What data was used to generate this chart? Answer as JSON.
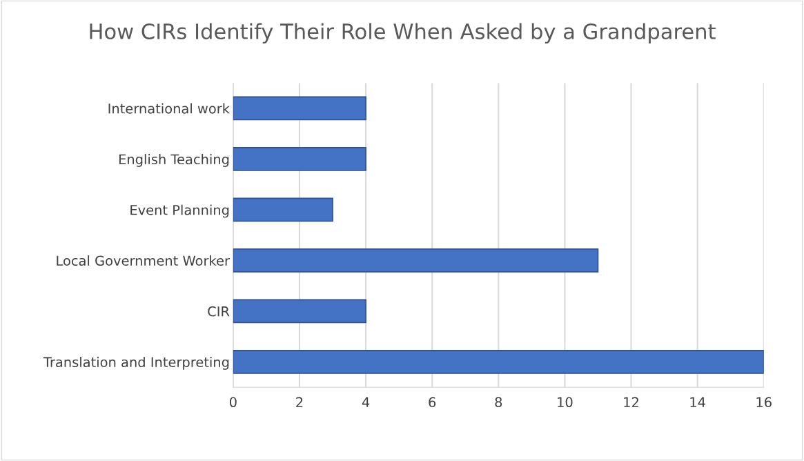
{
  "chart_data": {
    "type": "bar",
    "orientation": "horizontal",
    "title": "How CIRs Identify Their Role When Asked by a Grandparent",
    "categories": [
      "International work",
      "English Teaching",
      "Event Planning",
      "Local Government Worker",
      "CIR",
      "Translation and Interpreting"
    ],
    "values": [
      4,
      4,
      3,
      11,
      4,
      16
    ],
    "color": "#4472c4",
    "xlim": [
      0,
      16
    ],
    "xticks": [
      0,
      2,
      4,
      6,
      8,
      10,
      12,
      14,
      16
    ],
    "grid": "x"
  }
}
